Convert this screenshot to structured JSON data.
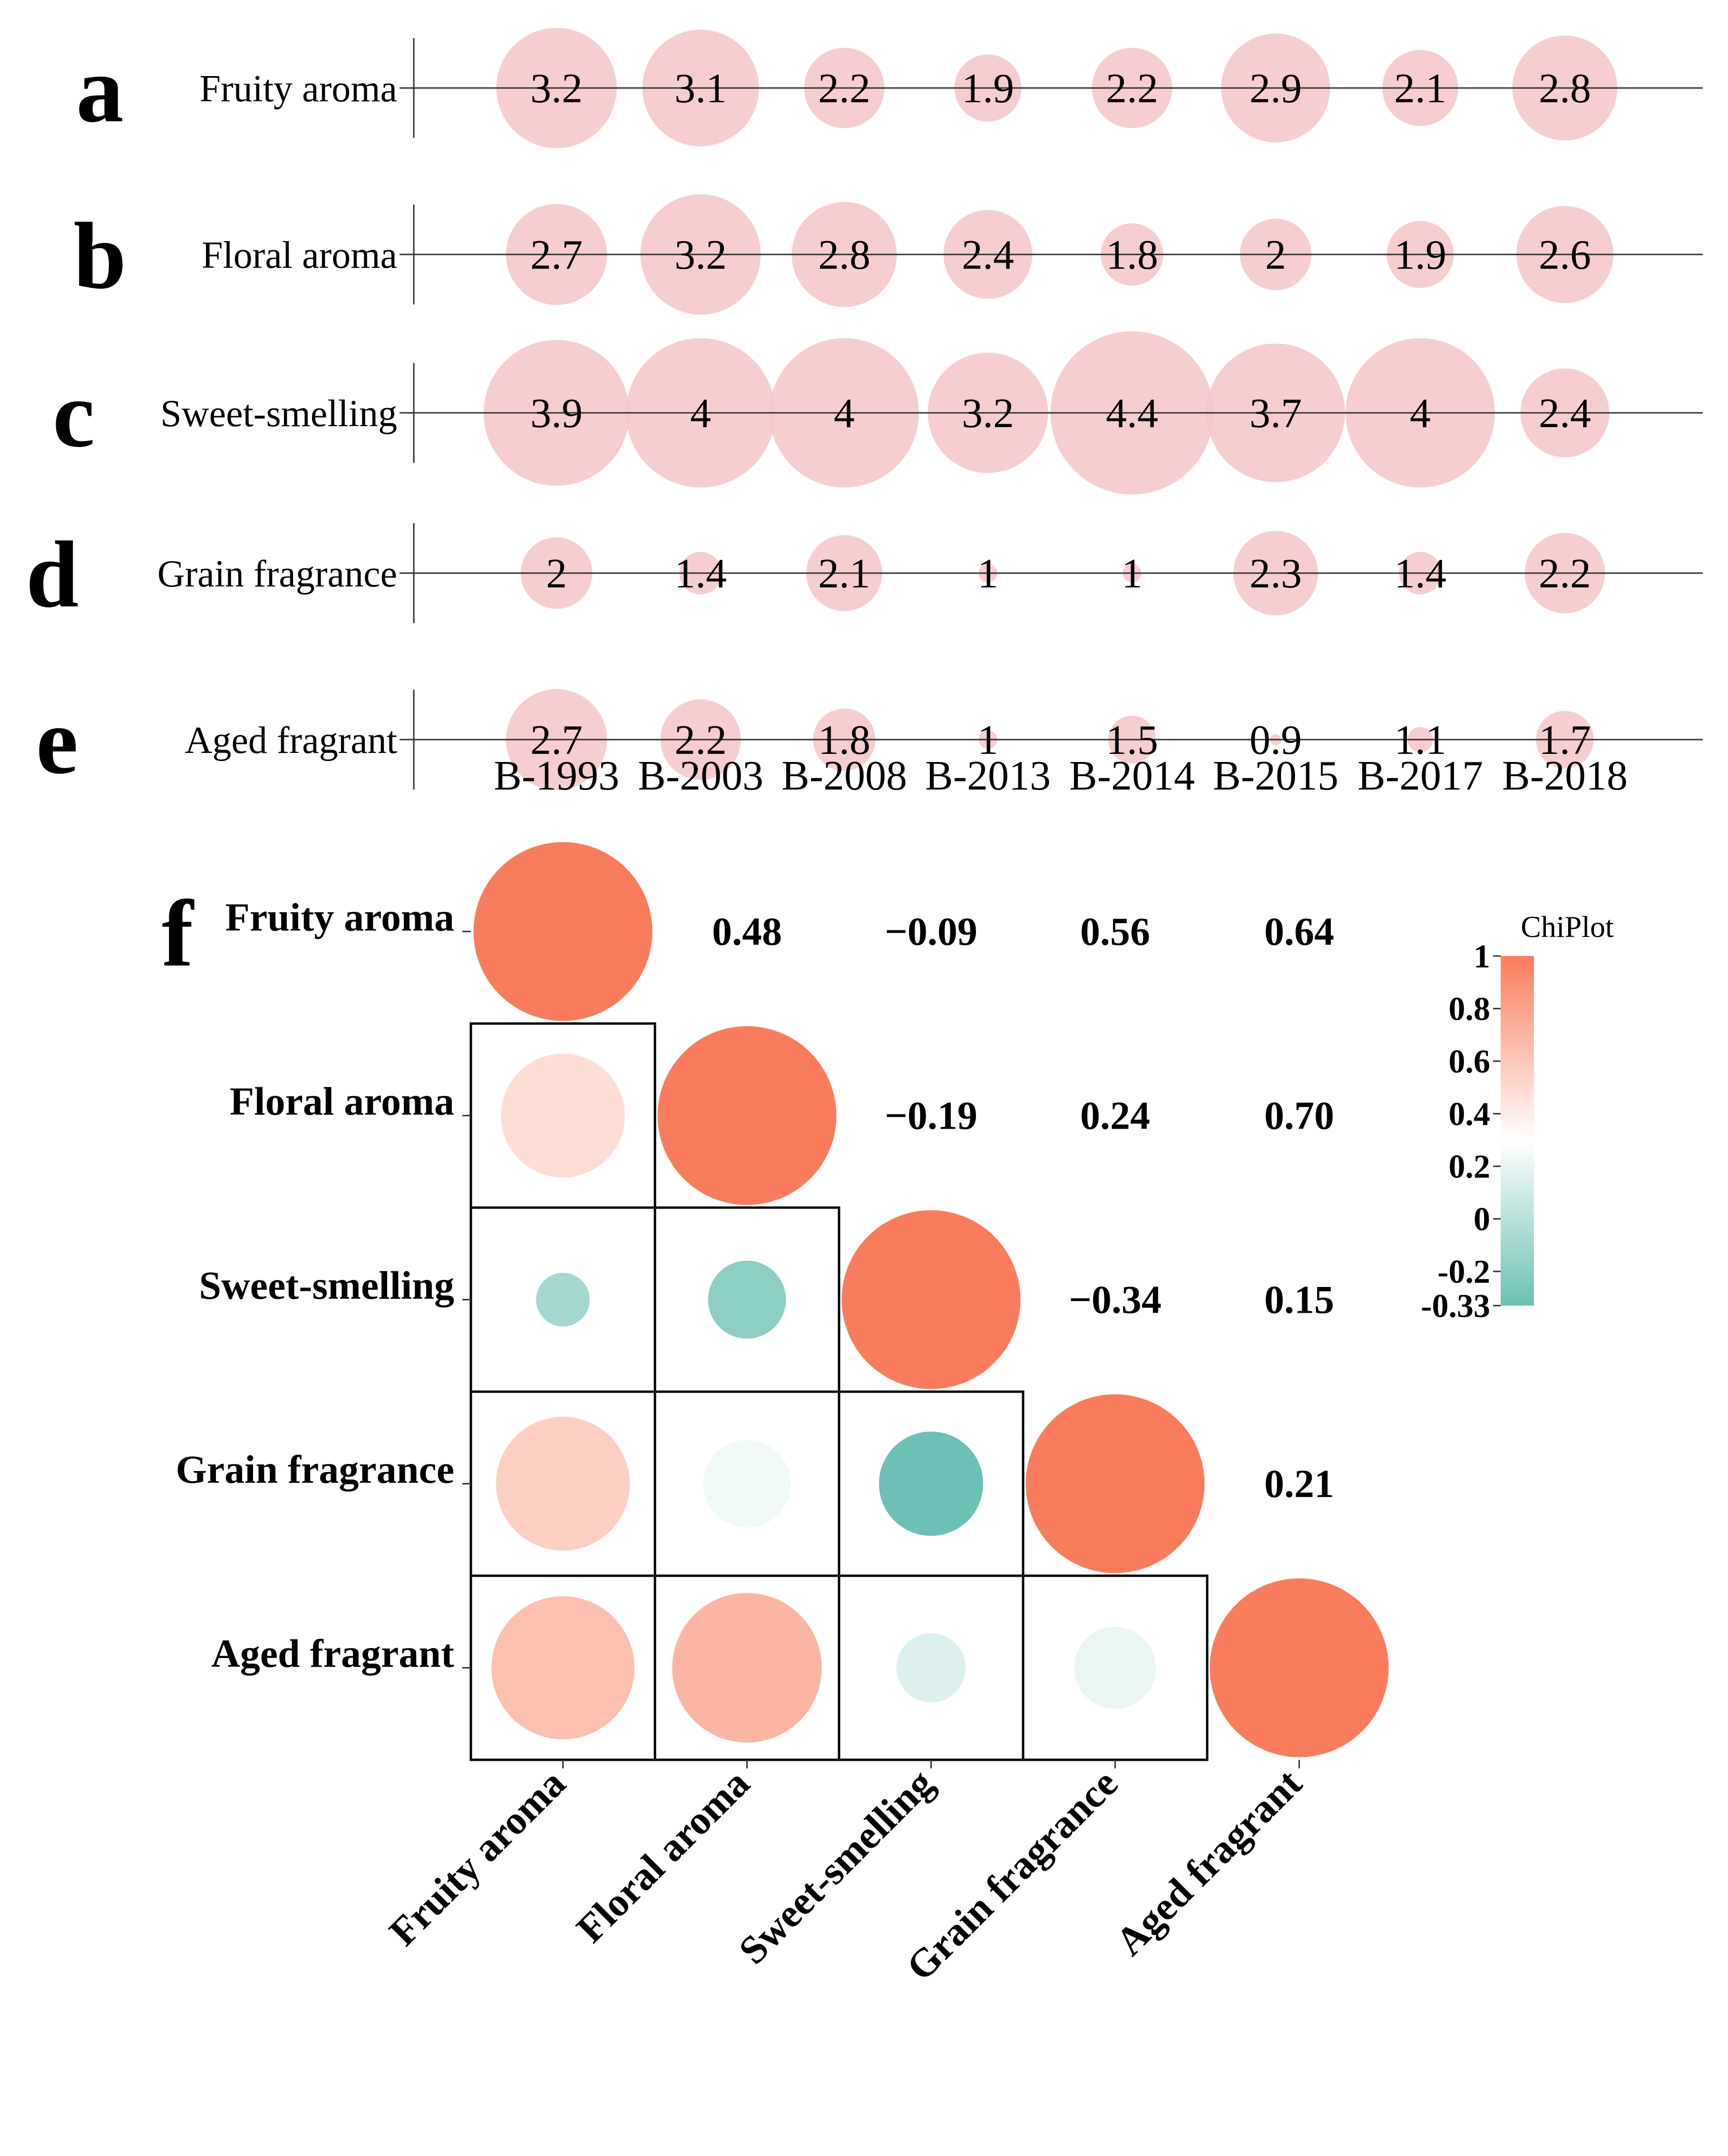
{
  "colors": {
    "bubble": "#f4c5c8",
    "positive": "#f97d5c",
    "neutral": "#ffffff",
    "negative": "#6cc0b5",
    "line": "#333333",
    "text": "#000000"
  },
  "bubble_panels": {
    "panel_letters": [
      "a",
      "b",
      "c",
      "d",
      "e"
    ],
    "categories": [
      "B-1993",
      "B-2003",
      "B-2008",
      "B-2013",
      "B-2014",
      "B-2015",
      "B-2017",
      "B-2018"
    ],
    "rows": [
      {
        "name": "Fruity aroma",
        "values": [
          3.2,
          3.1,
          2.2,
          1.9,
          2.2,
          2.9,
          2.1,
          2.8
        ]
      },
      {
        "name": "Floral aroma",
        "values": [
          2.7,
          3.2,
          2.8,
          2.4,
          1.8,
          2,
          1.9,
          2.6
        ]
      },
      {
        "name": "Sweet-smelling",
        "values": [
          3.9,
          4,
          4,
          3.2,
          4.4,
          3.7,
          4,
          2.4
        ]
      },
      {
        "name": "Grain fragrance",
        "values": [
          2,
          1.4,
          2.1,
          1,
          1,
          2.3,
          1.4,
          2.2
        ]
      },
      {
        "name": "Aged fragrant",
        "values": [
          2.7,
          2.2,
          1.8,
          1,
          1.5,
          0.9,
          1.1,
          1.7
        ]
      }
    ]
  },
  "chart_data": [
    {
      "type": "scatter",
      "title": "",
      "panels": [
        "a",
        "b",
        "c",
        "d",
        "e"
      ],
      "categories": [
        "B-1993",
        "B-2003",
        "B-2008",
        "B-2013",
        "B-2014",
        "B-2015",
        "B-2017",
        "B-2018"
      ],
      "series": [
        {
          "name": "Fruity aroma",
          "values": [
            3.2,
            3.1,
            2.2,
            1.9,
            2.2,
            2.9,
            2.1,
            2.8
          ]
        },
        {
          "name": "Floral aroma",
          "values": [
            2.7,
            3.2,
            2.8,
            2.4,
            1.8,
            2,
            1.9,
            2.6
          ]
        },
        {
          "name": "Sweet-smelling",
          "values": [
            3.9,
            4,
            4,
            3.2,
            4.4,
            3.7,
            4,
            2.4
          ]
        },
        {
          "name": "Grain fragrance",
          "values": [
            2,
            1.4,
            2.1,
            1,
            1,
            2.3,
            1.4,
            2.2
          ]
        },
        {
          "name": "Aged fragrant",
          "values": [
            2.7,
            2.2,
            1.8,
            1,
            1.5,
            0.9,
            1.1,
            1.7
          ]
        }
      ]
    },
    {
      "type": "heatmap",
      "panel": "f",
      "variables": [
        "Fruity aroma",
        "Floral aroma",
        "Sweet-smelling",
        "Grain fragrance",
        "Aged fragrant"
      ],
      "matrix": [
        [
          1,
          0.48,
          -0.09,
          0.56,
          0.64
        ],
        [
          0.48,
          1,
          -0.19,
          0.24,
          0.7
        ],
        [
          -0.09,
          -0.19,
          1,
          -0.34,
          0.15
        ],
        [
          0.56,
          0.24,
          -0.34,
          1,
          0.21
        ],
        [
          0.64,
          0.7,
          0.15,
          0.21,
          1
        ]
      ],
      "upper_labels": [
        [
          "",
          "0.48",
          "−0.09",
          "0.56",
          "0.64"
        ],
        [
          "",
          "",
          "−0.19",
          "0.24",
          "0.70"
        ],
        [
          "",
          "",
          "",
          "−0.34",
          "0.15"
        ],
        [
          "",
          "",
          "",
          "",
          "0.21"
        ],
        [
          "",
          "",
          "",
          "",
          ""
        ]
      ],
      "legend": {
        "title": "ChiPlot",
        "min": -0.33,
        "max": 1,
        "ticks": [
          "1",
          "0.8",
          "0.6",
          "0.4",
          "0.2",
          "0",
          "-0.2",
          "-0.33"
        ]
      }
    }
  ]
}
